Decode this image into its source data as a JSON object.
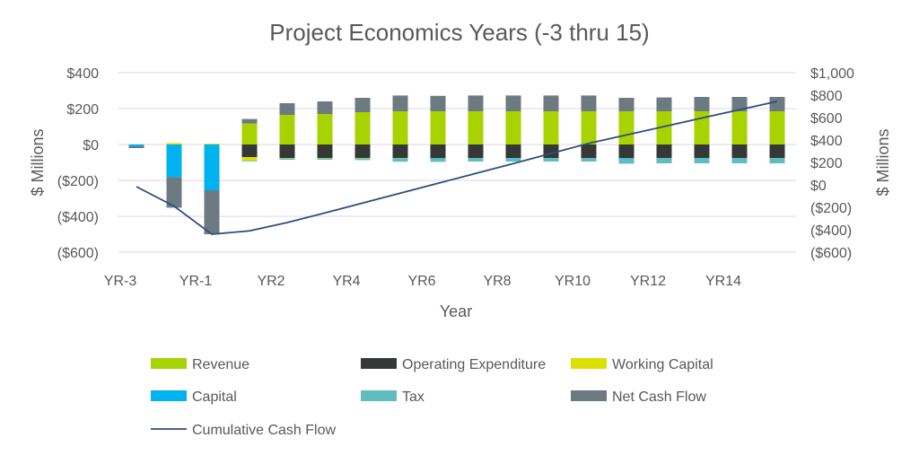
{
  "chart_data": {
    "type": "bar",
    "stacked": true,
    "title": "Project Economics Years (-3 thru 15)",
    "xlabel": "Year",
    "ylabel": "$ Millions",
    "y2label": "$ Millions",
    "ylim": [
      -600,
      400
    ],
    "y2lim": [
      -600,
      1000
    ],
    "yticks": [
      "$400",
      "$200",
      "$0",
      "($200)",
      "($400)",
      "($600)"
    ],
    "y2ticks": [
      "$1,000",
      "$800",
      "$600",
      "$400",
      "$200",
      "$0",
      "($200)",
      "($400)",
      "($600)"
    ],
    "grid": true,
    "legend_position": "bottom",
    "categories": [
      "YR-3",
      "YR-2",
      "YR-1",
      "YR1",
      "YR2",
      "YR3",
      "YR4",
      "YR5",
      "YR6",
      "YR7",
      "YR8",
      "YR9",
      "YR10",
      "YR11",
      "YR12",
      "YR13",
      "YR14",
      "YR15"
    ],
    "xtick_labels": [
      "YR-3",
      "YR-1",
      "YR2",
      "YR4",
      "YR6",
      "YR8",
      "YR10",
      "YR12",
      "YR14"
    ],
    "series": [
      {
        "name": "Revenue",
        "color": "#a9d300",
        "values": [
          0,
          0,
          0,
          117,
          165,
          170,
          180,
          185,
          185,
          185,
          185,
          185,
          185,
          185,
          185,
          185,
          185,
          185
        ]
      },
      {
        "name": "Operating Expenditure",
        "color": "#363838",
        "values": [
          0,
          0,
          0,
          -70,
          -75,
          -75,
          -75,
          -75,
          -75,
          -75,
          -75,
          -75,
          -75,
          -75,
          -75,
          -75,
          -75,
          -75
        ]
      },
      {
        "name": "Working Capital",
        "color": "#dbe000",
        "values": [
          0,
          8,
          5,
          -20,
          -2,
          -2,
          -2,
          -1,
          0,
          0,
          0,
          0,
          0,
          0,
          0,
          0,
          0,
          0
        ]
      },
      {
        "name": "Capital",
        "color": "#00b2ef",
        "values": [
          -10,
          -182,
          -255,
          0,
          0,
          0,
          0,
          0,
          -2,
          0,
          0,
          0,
          0,
          -2,
          0,
          0,
          0,
          0
        ]
      },
      {
        "name": "Tax",
        "color": "#61bdbd",
        "values": [
          0,
          0,
          0,
          -2,
          -8,
          -8,
          -10,
          -20,
          -20,
          -20,
          -20,
          -20,
          -20,
          -30,
          -30,
          -30,
          -30,
          -30
        ]
      },
      {
        "name": "Net Cash Flow",
        "color": "#6e7a82",
        "values": [
          -10,
          -170,
          -245,
          25,
          65,
          70,
          80,
          88,
          86,
          88,
          88,
          88,
          88,
          75,
          77,
          80,
          80,
          80
        ]
      }
    ],
    "line_series": {
      "name": "Cumulative Cash Flow",
      "color": "#2f4d7e",
      "axis": "right",
      "values": [
        -16,
        -190,
        -440,
        -410,
        -336,
        -250,
        -162,
        -74,
        14,
        102,
        190,
        280,
        370,
        445,
        520,
        596,
        670,
        744
      ]
    }
  }
}
